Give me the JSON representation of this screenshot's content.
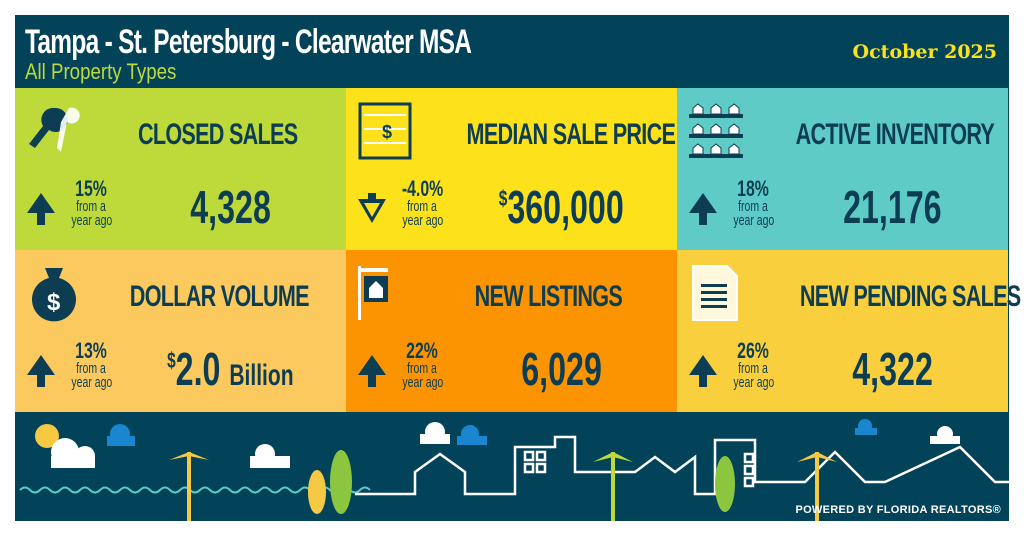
{
  "header": {
    "title": "Tampa - St. Petersburg - Clearwater MSA",
    "subtitle": "All Property Types",
    "date": "October 2025"
  },
  "tiles": [
    {
      "label": "CLOSED SALES",
      "change": "15%",
      "change_note": [
        "from a",
        "year ago"
      ],
      "direction": "up",
      "value": "4,328",
      "icon": "keys-icon",
      "color": "#bdda3a"
    },
    {
      "label": "MEDIAN SALE PRICE",
      "change": "-4.0%",
      "change_note": [
        "from a",
        "year ago"
      ],
      "direction": "down",
      "value_prefix": "$",
      "value": "360,000",
      "icon": "abacus-icon",
      "color": "#fde11b"
    },
    {
      "label": "ACTIVE INVENTORY",
      "change": "18%",
      "change_note": [
        "from a",
        "year ago"
      ],
      "direction": "up",
      "value": "21,176",
      "icon": "houses-grid-icon",
      "color": "#5ecbc7"
    },
    {
      "label": "DOLLAR VOLUME",
      "change": "13%",
      "change_note": [
        "from a",
        "year ago"
      ],
      "direction": "up",
      "value_prefix": "$",
      "value": "2.0",
      "value_suffix": "Billion",
      "icon": "money-bag-icon",
      "color": "#fbc95e"
    },
    {
      "label": "NEW LISTINGS",
      "change": "22%",
      "change_note": [
        "from a",
        "year ago"
      ],
      "direction": "up",
      "value": "6,029",
      "icon": "for-sale-sign-icon",
      "color": "#fb9400"
    },
    {
      "label": "NEW PENDING SALES",
      "change": "26%",
      "change_note": [
        "from a",
        "year ago"
      ],
      "direction": "up",
      "value": "4,322",
      "icon": "document-icon",
      "color": "#f9cf3d"
    }
  ],
  "footer": {
    "powered_by": "POWERED BY FLORIDA REALTORS®"
  }
}
